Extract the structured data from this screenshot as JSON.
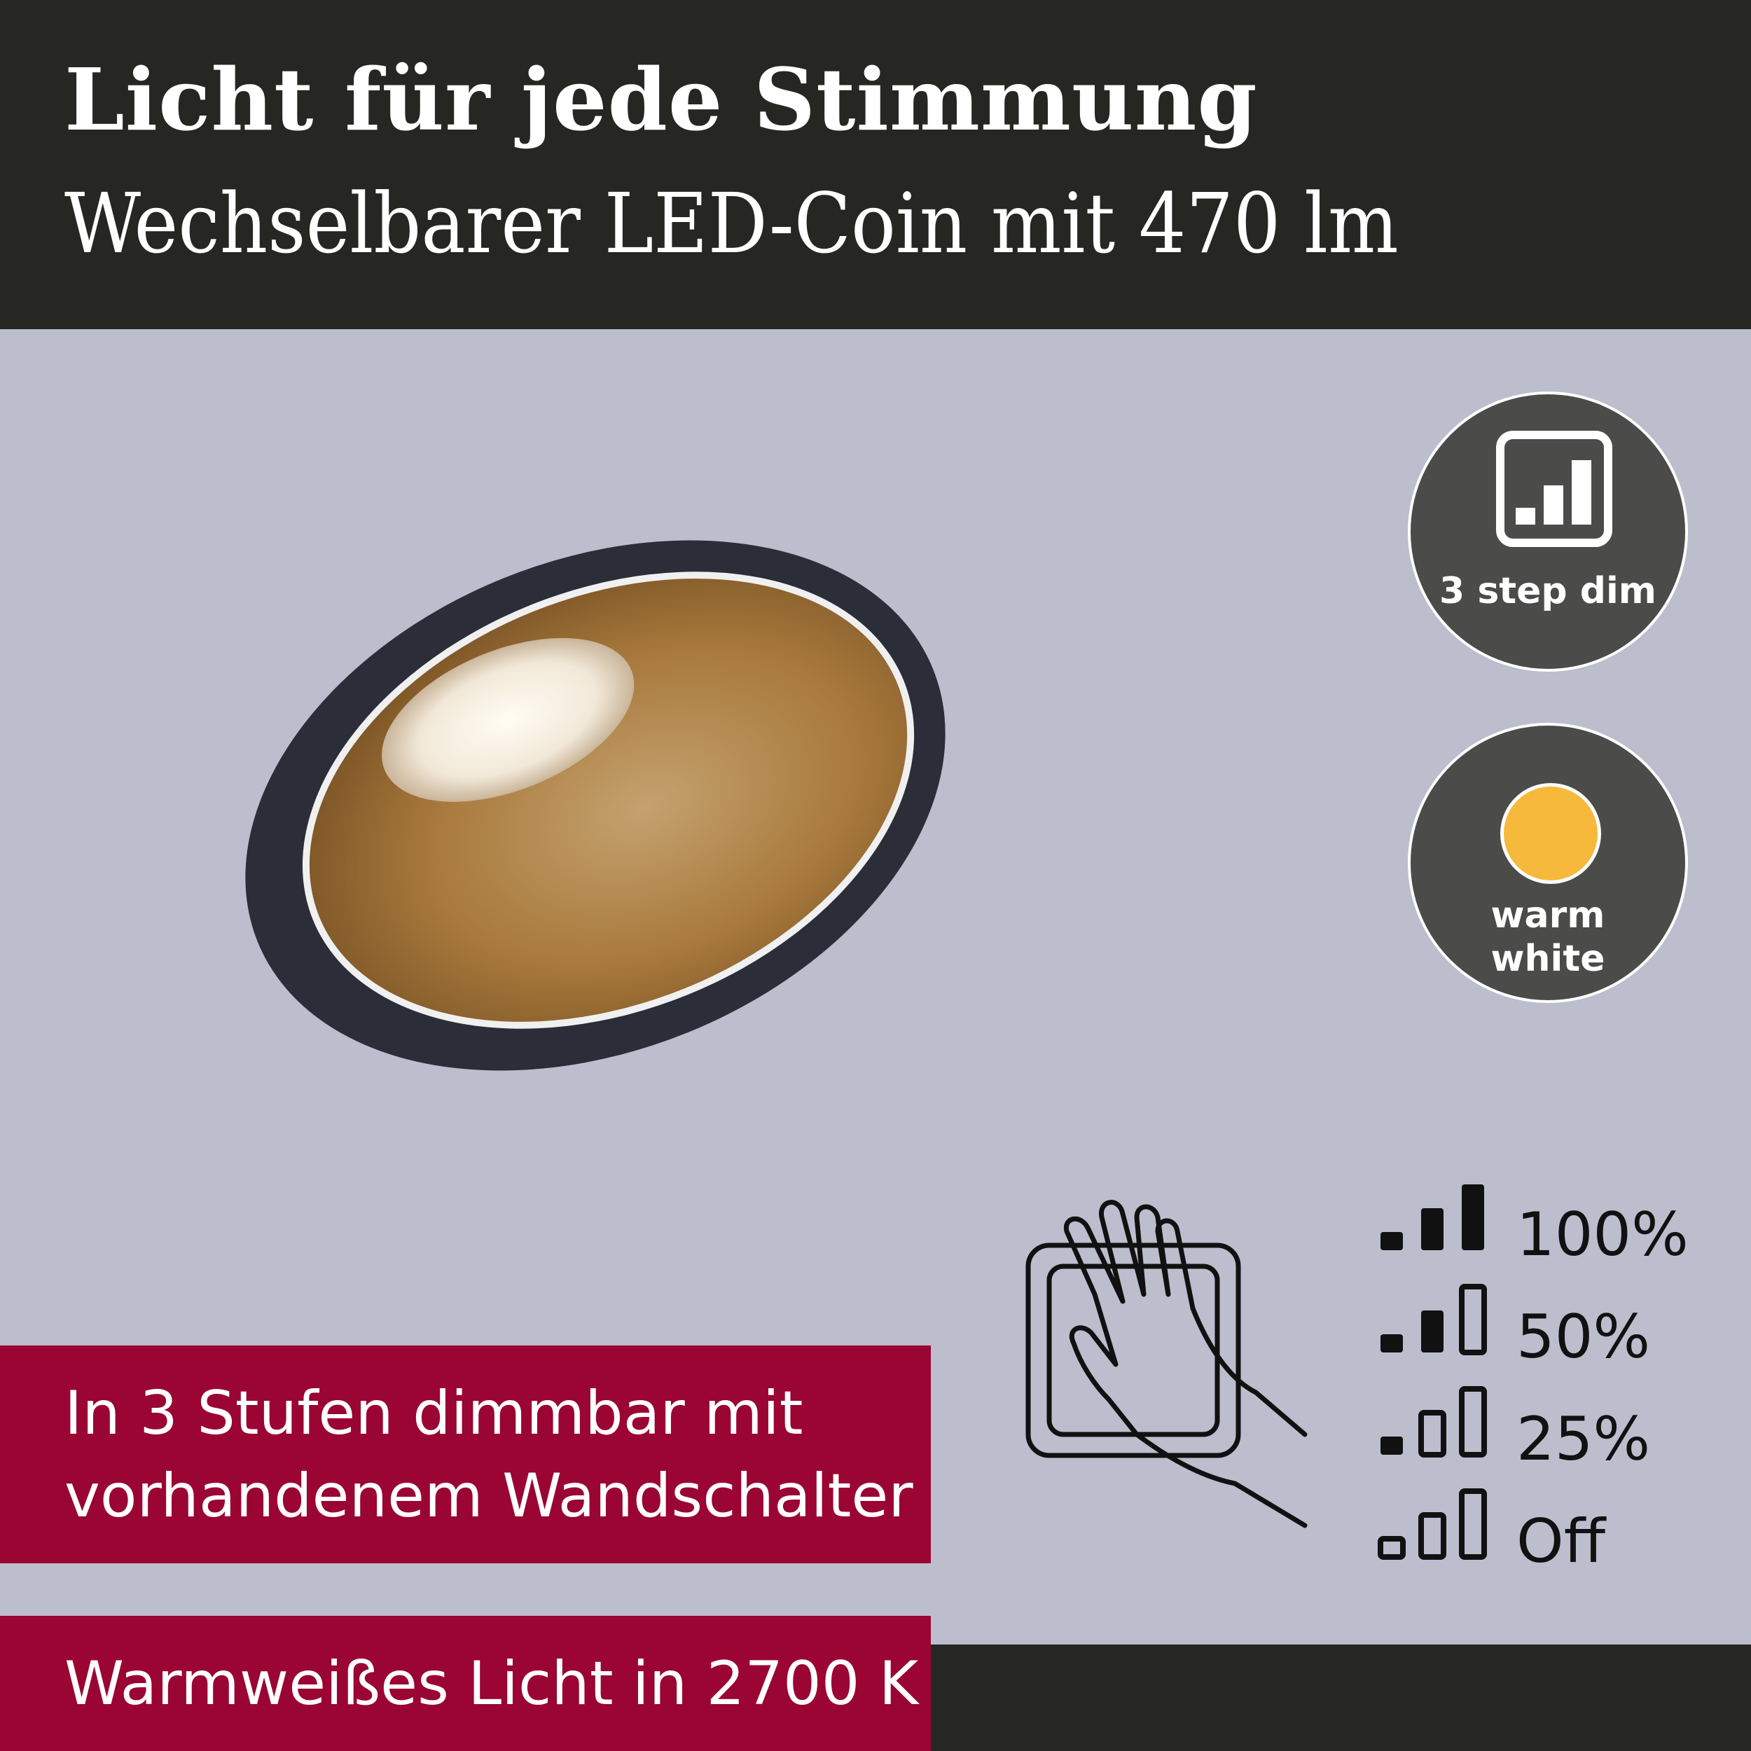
{
  "header": {
    "title": "Licht für jede Stimmung",
    "subtitle": "Wechselbarer LED-Coin mit 470 lm"
  },
  "badges": [
    {
      "icon": "dim-steps-icon",
      "label": "3 step dim"
    },
    {
      "icon": "warm-white-dot-icon",
      "label_line1": "warm",
      "label_line2": "white",
      "dot_color": "#f6b93b"
    }
  ],
  "features": {
    "dimming_line1": "In 3 Stufen dimmbar mit",
    "dimming_line2": "vorhandenem Wandschalter",
    "color_temp": "Warmweißes Licht in 2700 K"
  },
  "dim_levels": [
    {
      "label": "100%",
      "filled": 3
    },
    {
      "label": "50%",
      "filled": 2
    },
    {
      "label": "25%",
      "filled": 1
    },
    {
      "label": "Off",
      "filled": 0
    }
  ],
  "colors": {
    "accent": "#9a0533",
    "dark": "#262622",
    "background": "#bcbecd"
  }
}
